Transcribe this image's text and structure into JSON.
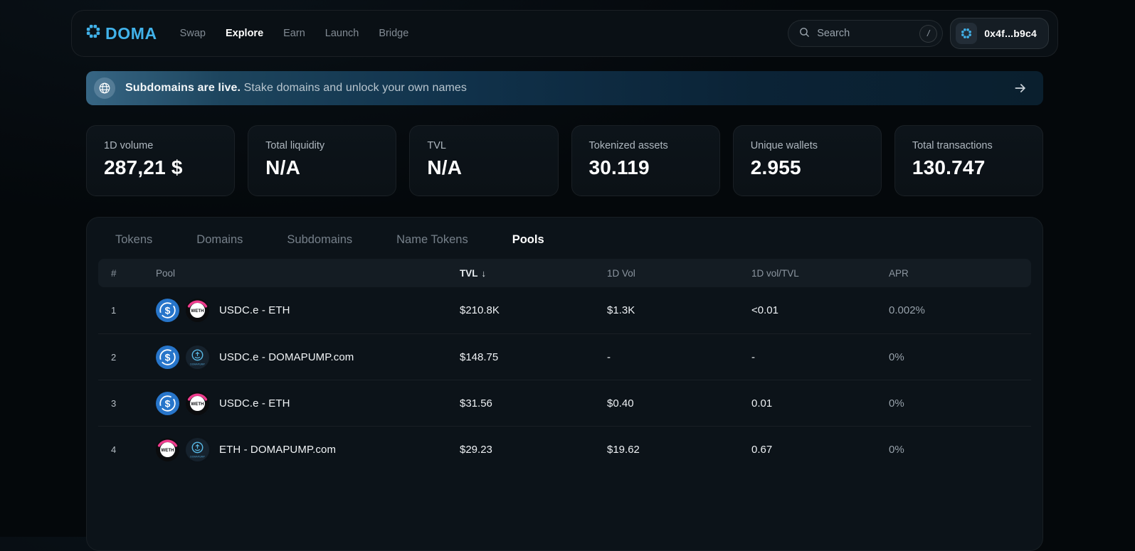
{
  "colors": {
    "brand_blue": "#41b2ea",
    "usdc_blue": "#2775CA",
    "weth_accent_pink": "#ef3c8e",
    "domapump_cyan": "#57b7e3",
    "panel_bg": "#0c1319"
  },
  "nav": {
    "brand": "DOMA",
    "items": [
      {
        "label": "Swap",
        "active": false
      },
      {
        "label": "Explore",
        "active": true
      },
      {
        "label": "Earn",
        "active": false
      },
      {
        "label": "Launch",
        "active": false
      },
      {
        "label": "Bridge",
        "active": false
      }
    ],
    "search": {
      "placeholder": "Search",
      "shortcut": "/"
    },
    "wallet_address": "0x4f...b9c4"
  },
  "banner": {
    "title": "Subdomains are live.",
    "subtitle": "Stake domains and unlock your own names"
  },
  "stats": [
    {
      "label": "1D volume",
      "value": "287,21 $"
    },
    {
      "label": "Total liquidity",
      "value": "N/A"
    },
    {
      "label": "TVL",
      "value": "N/A"
    },
    {
      "label": "Tokenized assets",
      "value": "30.119"
    },
    {
      "label": "Unique wallets",
      "value": "2.955"
    },
    {
      "label": "Total transactions",
      "value": "130.747"
    }
  ],
  "tabs": [
    {
      "label": "Tokens",
      "active": false
    },
    {
      "label": "Domains",
      "active": false
    },
    {
      "label": "Subdomains",
      "active": false
    },
    {
      "label": "Name Tokens",
      "active": false
    },
    {
      "label": "Pools",
      "active": true
    }
  ],
  "pools_table": {
    "columns": [
      {
        "label": "#",
        "sortable": false,
        "sorted": false
      },
      {
        "label": "Pool",
        "sortable": false,
        "sorted": false
      },
      {
        "label": "TVL",
        "sortable": true,
        "sorted": true,
        "sort_dir": "desc"
      },
      {
        "label": "1D Vol",
        "sortable": true,
        "sorted": false
      },
      {
        "label": "1D vol/TVL",
        "sortable": true,
        "sorted": false
      },
      {
        "label": "APR",
        "sortable": true,
        "sorted": false
      }
    ],
    "sort_arrow_glyph": "↓",
    "rows": [
      {
        "rank": "1",
        "tokens": [
          "usdc",
          "weth"
        ],
        "pair": "USDC.e - ETH",
        "tvl": "$210.8K",
        "vol_1d": "$1.3K",
        "vol_tvl": "<0.01",
        "apr": "0.002%"
      },
      {
        "rank": "2",
        "tokens": [
          "usdc",
          "domapump"
        ],
        "pair": "USDC.e - DOMAPUMP.com",
        "tvl": "$148.75",
        "vol_1d": "-",
        "vol_tvl": "-",
        "apr": "0%"
      },
      {
        "rank": "3",
        "tokens": [
          "usdc",
          "weth"
        ],
        "pair": "USDC.e - ETH",
        "tvl": "$31.56",
        "vol_1d": "$0.40",
        "vol_tvl": "0.01",
        "apr": "0%"
      },
      {
        "rank": "4",
        "tokens": [
          "weth",
          "domapump"
        ],
        "pair": "ETH - DOMAPUMP.com",
        "tvl": "$29.23",
        "vol_1d": "$19.62",
        "vol_tvl": "0.67",
        "apr": "0%"
      }
    ]
  }
}
